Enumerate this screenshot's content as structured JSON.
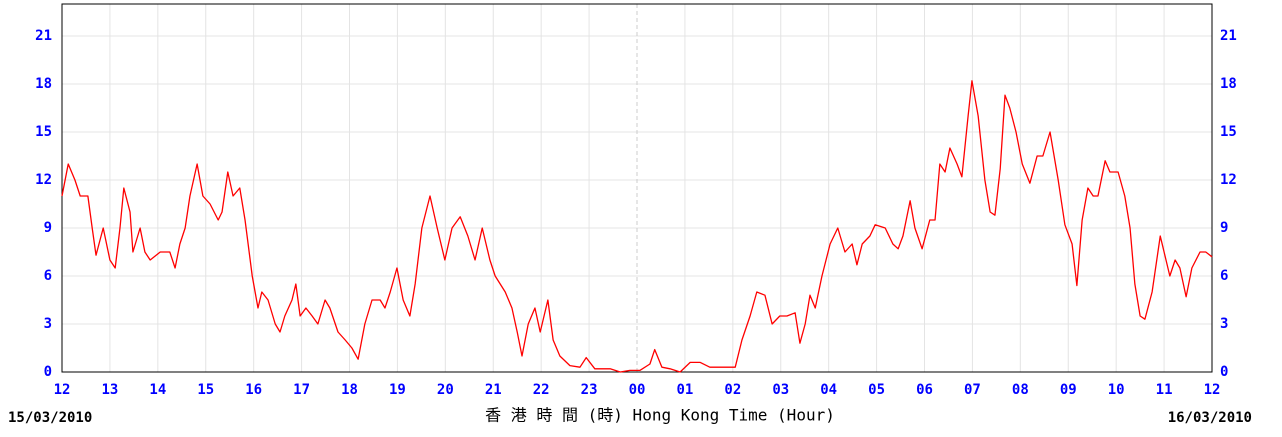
{
  "chart_data": {
    "type": "line",
    "xlabel": "香 港 時 間 (時)  Hong Kong Time (Hour)",
    "date_start": "15/03/2010",
    "date_end": "16/03/2010",
    "xlim": [
      0,
      24
    ],
    "xticks": [
      {
        "value": 0,
        "label": "12"
      },
      {
        "value": 1,
        "label": "13"
      },
      {
        "value": 2,
        "label": "14"
      },
      {
        "value": 3,
        "label": "15"
      },
      {
        "value": 4,
        "label": "16"
      },
      {
        "value": 5,
        "label": "17"
      },
      {
        "value": 6,
        "label": "18"
      },
      {
        "value": 7,
        "label": "19"
      },
      {
        "value": 8,
        "label": "20"
      },
      {
        "value": 9,
        "label": "21"
      },
      {
        "value": 10,
        "label": "22"
      },
      {
        "value": 11,
        "label": "23"
      },
      {
        "value": 12,
        "label": "00"
      },
      {
        "value": 13,
        "label": "01"
      },
      {
        "value": 14,
        "label": "02"
      },
      {
        "value": 15,
        "label": "03"
      },
      {
        "value": 16,
        "label": "04"
      },
      {
        "value": 17,
        "label": "05"
      },
      {
        "value": 18,
        "label": "06"
      },
      {
        "value": 19,
        "label": "07"
      },
      {
        "value": 20,
        "label": "08"
      },
      {
        "value": 21,
        "label": "09"
      },
      {
        "value": 22,
        "label": "10"
      },
      {
        "value": 23,
        "label": "11"
      },
      {
        "value": 24,
        "label": "12"
      }
    ],
    "ylim": [
      0,
      23
    ],
    "yticks": [
      0,
      3,
      6,
      9,
      12,
      15,
      18,
      21
    ],
    "grid": true,
    "series": [
      {
        "color": "#ff0000",
        "x": [
          0,
          0.13,
          0.27,
          0.38,
          0.54,
          0.63,
          0.71,
          0.86,
          1.0,
          1.11,
          1.21,
          1.29,
          1.42,
          1.48,
          1.63,
          1.73,
          1.84,
          2.05,
          2.25,
          2.36,
          2.46,
          2.57,
          2.67,
          2.82,
          2.94,
          3.09,
          3.26,
          3.34,
          3.46,
          3.57,
          3.71,
          3.82,
          3.97,
          4.09,
          4.17,
          4.3,
          4.45,
          4.55,
          4.65,
          4.8,
          4.88,
          4.97,
          5.09,
          5.22,
          5.34,
          5.49,
          5.59,
          5.76,
          5.91,
          6.05,
          6.18,
          6.32,
          6.47,
          6.64,
          6.74,
          6.85,
          6.99,
          7.12,
          7.26,
          7.37,
          7.51,
          7.68,
          7.83,
          7.99,
          8.14,
          8.31,
          8.47,
          8.62,
          8.77,
          8.93,
          9.04,
          9.25,
          9.39,
          9.5,
          9.6,
          9.73,
          9.87,
          9.98,
          10.14,
          10.25,
          10.39,
          10.6,
          10.81,
          10.94,
          11.12,
          11.44,
          11.65,
          11.85,
          12.06,
          12.27,
          12.37,
          12.52,
          12.69,
          12.9,
          13.11,
          13.32,
          13.52,
          13.84,
          14.05,
          14.19,
          14.36,
          14.5,
          14.67,
          14.82,
          14.98,
          15.13,
          15.3,
          15.4,
          15.51,
          15.61,
          15.72,
          15.86,
          16.03,
          16.19,
          16.34,
          16.49,
          16.59,
          16.7,
          16.86,
          16.97,
          17.18,
          17.34,
          17.45,
          17.55,
          17.7,
          17.8,
          17.95,
          18.11,
          18.22,
          18.32,
          18.43,
          18.53,
          18.68,
          18.78,
          18.91,
          18.99,
          19.12,
          19.26,
          19.37,
          19.47,
          19.58,
          19.68,
          19.78,
          19.91,
          20.04,
          20.2,
          20.35,
          20.47,
          20.62,
          20.79,
          20.93,
          21.08,
          21.18,
          21.29,
          21.41,
          21.52,
          21.62,
          21.77,
          21.87,
          22.04,
          22.18,
          22.29,
          22.39,
          22.5,
          22.6,
          22.75,
          22.92,
          23.04,
          23.12,
          23.23,
          23.33,
          23.46,
          23.58,
          23.75,
          23.87,
          24.0
        ],
        "values": [
          11,
          13,
          12,
          11,
          11,
          9,
          7.3,
          9,
          7,
          6.5,
          9,
          11.5,
          10,
          7.5,
          9,
          7.5,
          7,
          7.5,
          7.5,
          6.5,
          8,
          9,
          11,
          13,
          11,
          10.5,
          9.5,
          10,
          12.5,
          11,
          11.5,
          9.5,
          6,
          4,
          5,
          4.5,
          3,
          2.5,
          3.5,
          4.5,
          5.5,
          3.5,
          4,
          3.5,
          3,
          4.5,
          4,
          2.5,
          2,
          1.5,
          0.8,
          3,
          4.5,
          4.5,
          4,
          5,
          6.5,
          4.5,
          3.5,
          5.5,
          9,
          11,
          9,
          7,
          9,
          9.7,
          8.5,
          7,
          9,
          7,
          6,
          5,
          4,
          2.5,
          1,
          3,
          4,
          2.5,
          4.5,
          2,
          1,
          0.4,
          0.3,
          0.9,
          0.2,
          0.2,
          0,
          0.1,
          0.1,
          0.5,
          1.4,
          0.3,
          0.2,
          0,
          0.6,
          0.6,
          0.3,
          0.3,
          0.3,
          2,
          3.5,
          5,
          4.8,
          3,
          3.5,
          3.5,
          3.7,
          1.8,
          3,
          4.8,
          4,
          6,
          8,
          9,
          7.5,
          8,
          6.7,
          8,
          8.5,
          9.2,
          9,
          8,
          7.7,
          8.5,
          10.7,
          9,
          7.7,
          9.5,
          9.5,
          13,
          12.5,
          14,
          13,
          12.2,
          16,
          18.2,
          16,
          12,
          10,
          9.8,
          12.7,
          17.3,
          16.5,
          15,
          13,
          11.8,
          13.5,
          13.5,
          15,
          12,
          9.2,
          8,
          5.4,
          9.5,
          11.5,
          11,
          11,
          13.2,
          12.5,
          12.5,
          11,
          9,
          5.5,
          3.5,
          3.3,
          5,
          8.5,
          7,
          6,
          7,
          6.5,
          4.7,
          6.5,
          7.5,
          7.5,
          7.2
        ]
      }
    ]
  }
}
